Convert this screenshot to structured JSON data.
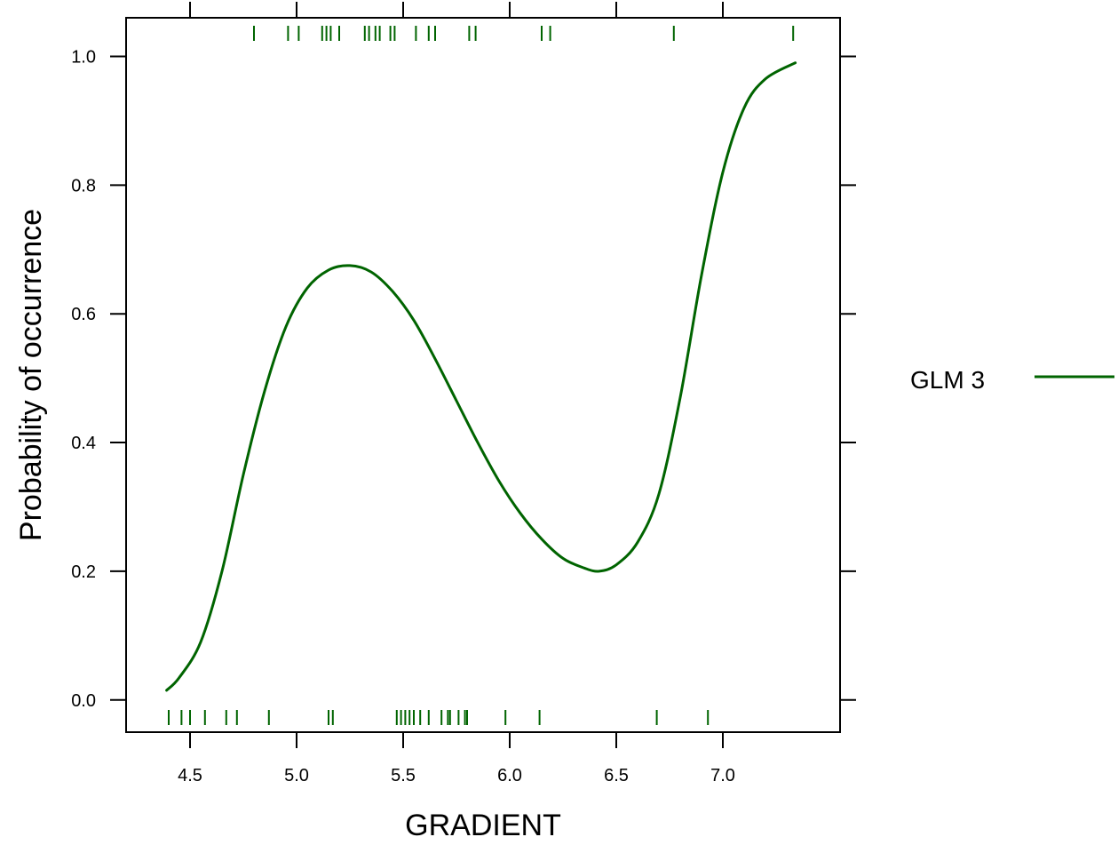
{
  "chart_data": {
    "type": "line",
    "xlabel": "GRADIENT",
    "ylabel": "Probability of occurrence",
    "xlim": [
      4.2,
      7.55
    ],
    "ylim": [
      -0.05,
      1.06
    ],
    "x_ticks": [
      4.5,
      5.0,
      5.5,
      6.0,
      6.5,
      7.0
    ],
    "x_tick_labels": [
      "4.5",
      "5.0",
      "5.5",
      "6.0",
      "6.5",
      "7.0"
    ],
    "y_ticks": [
      0.0,
      0.2,
      0.4,
      0.6,
      0.8,
      1.0
    ],
    "y_tick_labels": [
      "0.0",
      "0.2",
      "0.4",
      "0.6",
      "0.8",
      "1.0"
    ],
    "grid": false,
    "legend_position": "right",
    "line_color": "#006400",
    "series": [
      {
        "name": "GLM 3",
        "x": [
          4.39,
          4.45,
          4.55,
          4.65,
          4.75,
          4.85,
          4.95,
          5.05,
          5.15,
          5.25,
          5.35,
          5.45,
          5.55,
          5.65,
          5.75,
          5.85,
          5.95,
          6.05,
          6.15,
          6.25,
          6.35,
          6.42,
          6.5,
          6.6,
          6.7,
          6.8,
          6.9,
          7.0,
          7.1,
          7.2,
          7.34
        ],
        "y": [
          0.015,
          0.035,
          0.09,
          0.2,
          0.35,
          0.48,
          0.58,
          0.64,
          0.668,
          0.675,
          0.665,
          0.635,
          0.59,
          0.53,
          0.465,
          0.4,
          0.34,
          0.29,
          0.25,
          0.22,
          0.205,
          0.2,
          0.21,
          0.245,
          0.32,
          0.47,
          0.66,
          0.82,
          0.92,
          0.965,
          0.99
        ]
      }
    ],
    "rug_top": [
      4.8,
      4.96,
      5.01,
      5.12,
      5.14,
      5.16,
      5.2,
      5.32,
      5.34,
      5.37,
      5.39,
      5.44,
      5.46,
      5.56,
      5.62,
      5.65,
      5.81,
      5.84,
      6.15,
      6.19,
      6.77,
      7.33
    ],
    "rug_bottom": [
      4.4,
      4.46,
      4.5,
      4.57,
      4.67,
      4.72,
      4.87,
      5.15,
      5.17,
      5.47,
      5.49,
      5.51,
      5.53,
      5.55,
      5.58,
      5.62,
      5.68,
      5.71,
      5.72,
      5.76,
      5.79,
      5.8,
      5.98,
      6.14,
      6.69,
      6.93
    ]
  }
}
